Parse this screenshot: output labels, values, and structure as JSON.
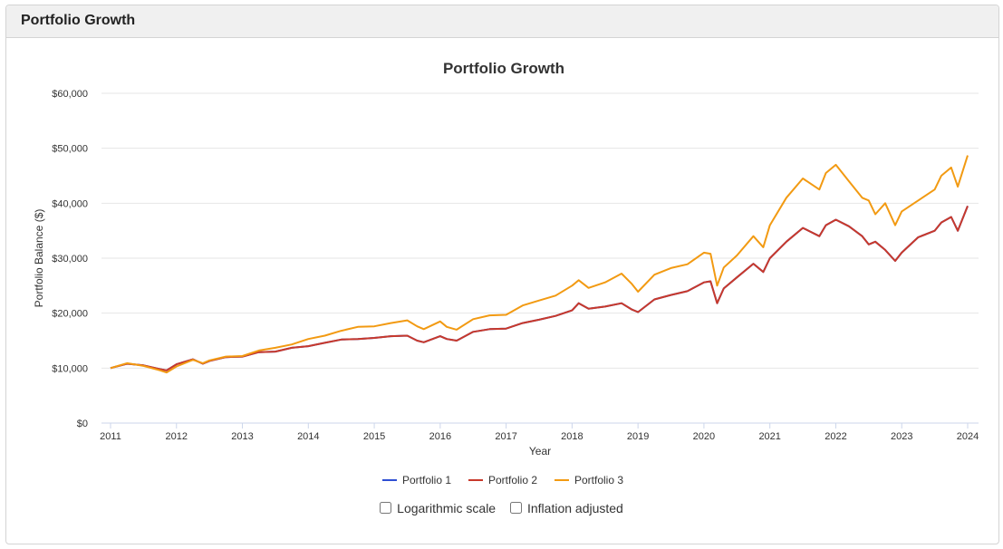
{
  "panel": {
    "title": "Portfolio Growth"
  },
  "options": {
    "log_label": "Logarithmic scale",
    "inflation_label": "Inflation adjusted"
  },
  "chart_data": {
    "type": "line",
    "title": "Portfolio Growth",
    "xlabel": "Year",
    "ylabel": "Portfolio Balance ($)",
    "xlim": [
      2011.0,
      2024.0
    ],
    "ylim": [
      0,
      60000
    ],
    "yticks": [
      0,
      10000,
      20000,
      30000,
      40000,
      50000,
      60000
    ],
    "ytick_labels": [
      "$0",
      "$10,000",
      "$20,000",
      "$30,000",
      "$40,000",
      "$50,000",
      "$60,000"
    ],
    "xticks": [
      2011,
      2012,
      2013,
      2014,
      2015,
      2016,
      2017,
      2018,
      2019,
      2020,
      2021,
      2022,
      2023,
      2024
    ],
    "xtick_labels": [
      "2011",
      "2012",
      "2013",
      "2014",
      "2015",
      "2016",
      "2017",
      "2018",
      "2019",
      "2020",
      "2021",
      "2022",
      "2023",
      "2024"
    ],
    "grid": true,
    "legend_position": "bottom-center",
    "x": [
      2011.0,
      2011.25,
      2011.5,
      2011.75,
      2011.85,
      2012.0,
      2012.25,
      2012.4,
      2012.5,
      2012.75,
      2013.0,
      2013.25,
      2013.5,
      2013.75,
      2014.0,
      2014.25,
      2014.5,
      2014.75,
      2015.0,
      2015.25,
      2015.5,
      2015.65,
      2015.75,
      2016.0,
      2016.1,
      2016.25,
      2016.5,
      2016.75,
      2017.0,
      2017.25,
      2017.5,
      2017.75,
      2018.0,
      2018.1,
      2018.25,
      2018.5,
      2018.75,
      2018.9,
      2019.0,
      2019.25,
      2019.5,
      2019.75,
      2020.0,
      2020.1,
      2020.2,
      2020.3,
      2020.5,
      2020.75,
      2020.9,
      2021.0,
      2021.25,
      2021.5,
      2021.75,
      2021.85,
      2022.0,
      2022.2,
      2022.4,
      2022.5,
      2022.6,
      2022.75,
      2022.9,
      2023.0,
      2023.25,
      2023.5,
      2023.6,
      2023.75,
      2023.85,
      2024.0
    ],
    "series": [
      {
        "name": "Portfolio 1",
        "color": "#2f4fd3",
        "values": [
          10000,
          10800,
          10500,
          9800,
          9600,
          10700,
          11600,
          10800,
          11300,
          12000,
          12100,
          12900,
          13000,
          13700,
          14000,
          14600,
          15200,
          15300,
          15500,
          15800,
          15900,
          15000,
          14700,
          15800,
          15300,
          15000,
          16600,
          17100,
          17200,
          18200,
          18800,
          19500,
          20500,
          21800,
          20800,
          21200,
          21800,
          20700,
          20200,
          22500,
          23300,
          24000,
          25600,
          25800,
          21800,
          24500,
          26500,
          29000,
          27500,
          30000,
          33000,
          35500,
          34000,
          36000,
          37000,
          35800,
          34000,
          32500,
          33000,
          31500,
          29500,
          31000,
          33800,
          35000,
          36500,
          37500,
          35000,
          39500
        ]
      },
      {
        "name": "Portfolio 2",
        "color": "#c8392b",
        "values": [
          10000,
          10800,
          10500,
          9800,
          9600,
          10700,
          11600,
          10800,
          11300,
          12000,
          12100,
          12900,
          13000,
          13700,
          14000,
          14600,
          15200,
          15300,
          15500,
          15800,
          15900,
          15000,
          14700,
          15800,
          15300,
          15000,
          16600,
          17100,
          17200,
          18200,
          18800,
          19500,
          20500,
          21800,
          20800,
          21200,
          21800,
          20700,
          20200,
          22500,
          23300,
          24000,
          25600,
          25800,
          21800,
          24500,
          26500,
          29000,
          27500,
          30000,
          33000,
          35500,
          34000,
          36000,
          37000,
          35800,
          34000,
          32500,
          33000,
          31500,
          29500,
          31000,
          33800,
          35000,
          36500,
          37500,
          35000,
          39500
        ]
      },
      {
        "name": "Portfolio 3",
        "color": "#f29a12",
        "values": [
          10000,
          10900,
          10400,
          9600,
          9200,
          10300,
          11500,
          10900,
          11400,
          12100,
          12200,
          13200,
          13700,
          14300,
          15300,
          15900,
          16800,
          17500,
          17600,
          18200,
          18700,
          17600,
          17100,
          18500,
          17500,
          17000,
          18900,
          19600,
          19700,
          21400,
          22300,
          23200,
          25000,
          26000,
          24600,
          25600,
          27200,
          25400,
          23900,
          27000,
          28200,
          28900,
          31000,
          30800,
          25000,
          28300,
          30500,
          34000,
          32000,
          36000,
          41000,
          44500,
          42500,
          45500,
          47000,
          44000,
          41000,
          40500,
          38000,
          40000,
          36000,
          38500,
          40500,
          42500,
          45000,
          46500,
          43000,
          48700
        ]
      }
    ]
  }
}
